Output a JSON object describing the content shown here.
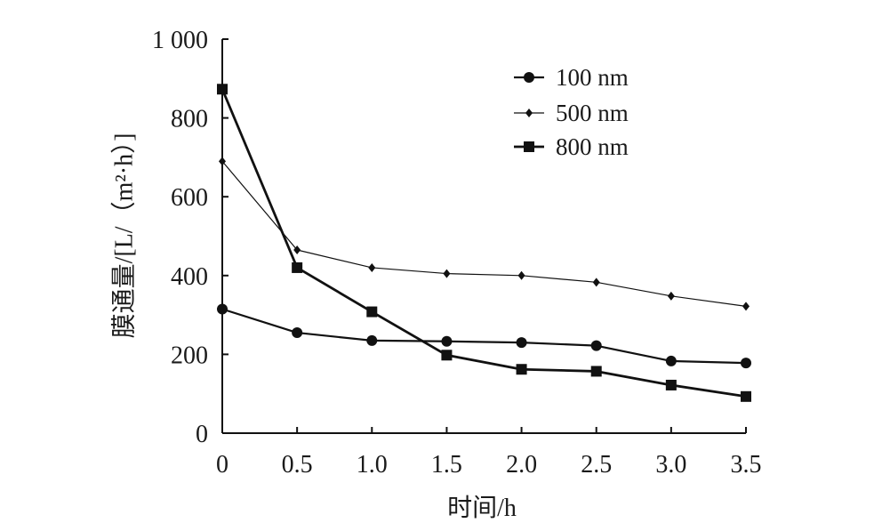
{
  "chart_data": {
    "type": "line",
    "xlabel": "时间/h",
    "ylabel": "膜通量/[L/（m²·h）]",
    "x": [
      0,
      0.5,
      1.0,
      1.5,
      2.0,
      2.5,
      3.0,
      3.5
    ],
    "xtick_labels": [
      "0",
      "0.5",
      "1.0",
      "1.5",
      "2.0",
      "2.5",
      "3.0",
      "3.5"
    ],
    "xlim": [
      0,
      3.5
    ],
    "ylim": [
      0,
      1000
    ],
    "yticks": [
      0,
      200,
      400,
      600,
      800,
      1000
    ],
    "ytick_labels": [
      "0",
      "200",
      "400",
      "600",
      "800",
      "1 000"
    ],
    "grid": false,
    "legend_position": "top-right",
    "color": "#111111",
    "series": [
      {
        "name": "100 nm",
        "marker": "circle",
        "values": [
          315,
          255,
          235,
          233,
          230,
          222,
          183,
          178
        ]
      },
      {
        "name": "500 nm",
        "marker": "diamond",
        "values": [
          690,
          465,
          420,
          405,
          400,
          383,
          348,
          322
        ]
      },
      {
        "name": "800 nm",
        "marker": "square",
        "values": [
          873,
          420,
          308,
          198,
          162,
          157,
          122,
          93
        ]
      }
    ]
  }
}
